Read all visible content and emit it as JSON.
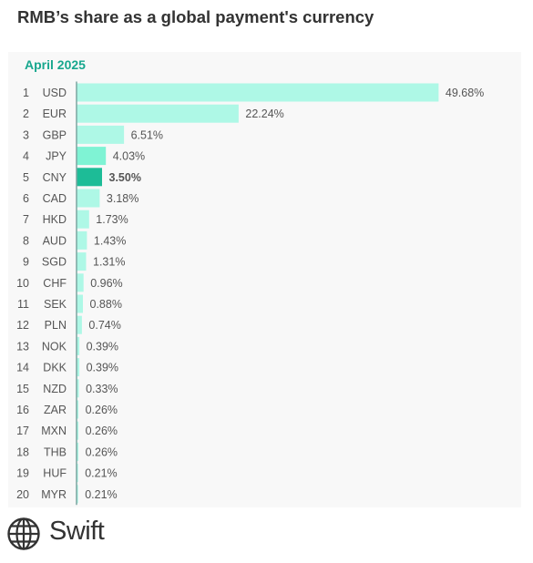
{
  "chart_data": {
    "type": "bar",
    "orientation": "horizontal",
    "title": "RMB’s share as a global payment's currency",
    "subtitle": "April 2025",
    "ranks": [
      1,
      2,
      3,
      4,
      5,
      6,
      7,
      8,
      9,
      10,
      11,
      12,
      13,
      14,
      15,
      16,
      17,
      18,
      19,
      20
    ],
    "categories": [
      "USD",
      "EUR",
      "GBP",
      "JPY",
      "CNY",
      "CAD",
      "HKD",
      "AUD",
      "SGD",
      "CHF",
      "SEK",
      "PLN",
      "NOK",
      "DKK",
      "NZD",
      "ZAR",
      "MXN",
      "THB",
      "HUF",
      "MYR"
    ],
    "values": [
      49.68,
      22.24,
      6.51,
      4.03,
      3.5,
      3.18,
      1.73,
      1.43,
      1.31,
      0.96,
      0.88,
      0.74,
      0.39,
      0.39,
      0.33,
      0.26,
      0.26,
      0.26,
      0.21,
      0.21
    ],
    "value_labels": [
      "49.68%",
      "22.24%",
      "6.51%",
      "4.03%",
      "3.50%",
      "3.18%",
      "1.73%",
      "1.43%",
      "1.31%",
      "0.96%",
      "0.88%",
      "0.74%",
      "0.39%",
      "0.39%",
      "0.33%",
      "0.26%",
      "0.26%",
      "0.26%",
      "0.21%",
      "0.21%"
    ],
    "highlight_category": "CNY",
    "xlim": [
      0,
      50
    ],
    "grid": false,
    "legend": "none",
    "colors": {
      "bar": "#aef8e6",
      "jpy_bar": "#7ff3d4",
      "highlight_bar": "#1dbc97",
      "axis": "#7aa6a0",
      "subtitle": "#17a78e"
    }
  },
  "brand": {
    "name": "Swift",
    "icon": "globe-icon"
  }
}
